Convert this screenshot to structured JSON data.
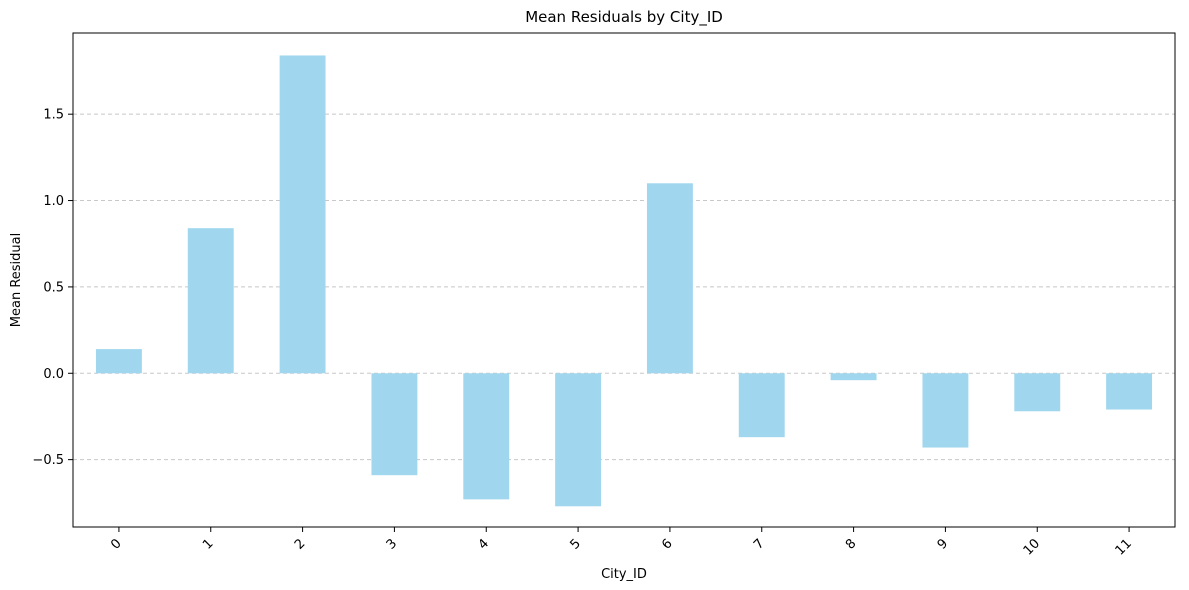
{
  "chart_data": {
    "type": "bar",
    "title": "Mean Residuals by City_ID",
    "xlabel": "City_ID",
    "ylabel": "Mean Residual",
    "categories": [
      "0",
      "1",
      "2",
      "3",
      "4",
      "5",
      "6",
      "7",
      "8",
      "9",
      "10",
      "11"
    ],
    "values": [
      0.14,
      0.84,
      1.84,
      -0.59,
      -0.73,
      -0.77,
      1.1,
      -0.37,
      -0.04,
      -0.43,
      -0.22,
      -0.21
    ],
    "ylim": [
      -0.89,
      1.97
    ],
    "yticks": [
      -0.5,
      0.0,
      0.5,
      1.0,
      1.5
    ],
    "ytick_labels": [
      "−0.5",
      "0.0",
      "0.5",
      "1.0",
      "1.5"
    ],
    "grid": "y-dashed",
    "bar_color": "#a0d7ee",
    "grid_color": "#c8c8c8"
  }
}
